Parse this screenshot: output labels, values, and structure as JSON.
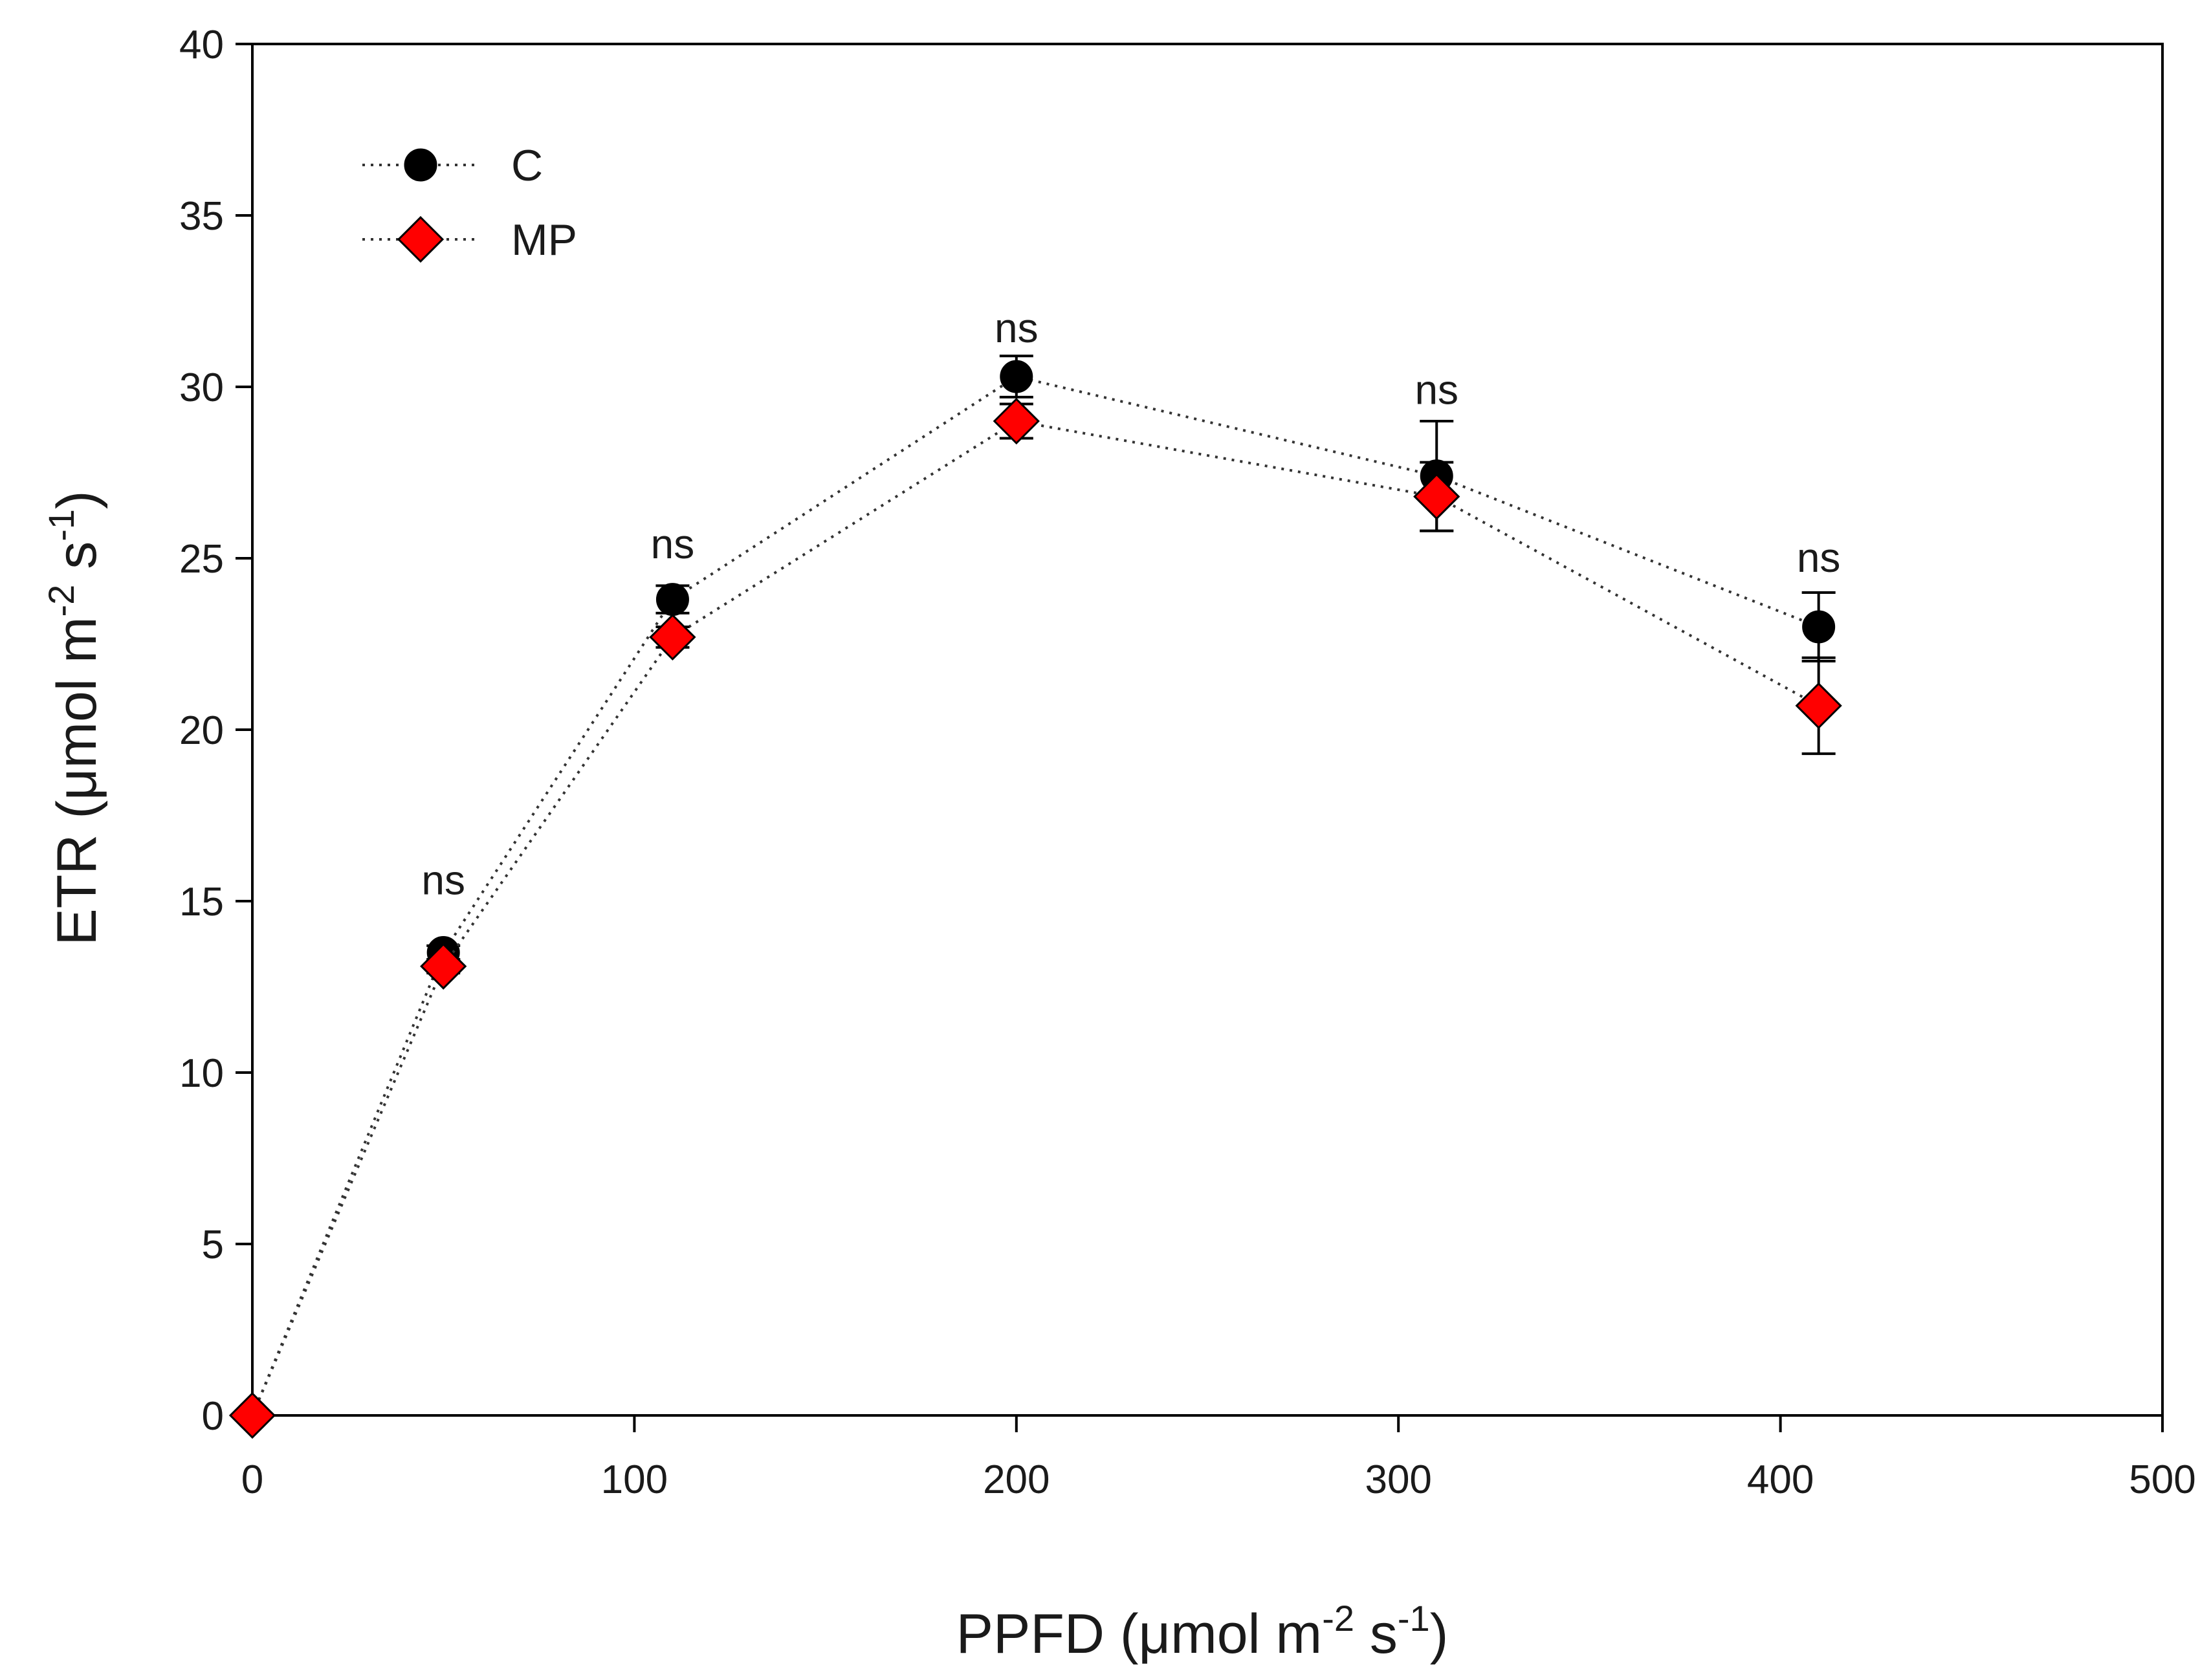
{
  "chart_data": {
    "type": "line",
    "title": "",
    "xlabel": {
      "main": "PPFD  (μmol m",
      "sup1": "-2",
      "mid": " s",
      "sup2": "-1",
      "end": ")"
    },
    "ylabel": {
      "main": "ETR (μmol m",
      "sup1": "-2",
      "mid": " s",
      "sup2": "-1",
      "end": ")"
    },
    "xlim": [
      0,
      500
    ],
    "ylim": [
      0,
      40
    ],
    "xticks": [
      0,
      100,
      200,
      300,
      400,
      500
    ],
    "yticks": [
      0,
      5,
      10,
      15,
      20,
      25,
      30,
      35,
      40
    ],
    "grid": false,
    "legend_position": "top-left",
    "series": [
      {
        "name": "C",
        "marker": "circle",
        "color": "#000000",
        "line": "dotted",
        "x": [
          0,
          50,
          110,
          200,
          310,
          410
        ],
        "y": [
          0,
          13.5,
          23.8,
          30.3,
          27.4,
          23.0
        ],
        "err": [
          0,
          0.2,
          0.4,
          0.6,
          1.6,
          1.0
        ]
      },
      {
        "name": "MP",
        "marker": "diamond",
        "color": "#ff0000",
        "line": "dotted",
        "x": [
          0,
          50,
          110,
          200,
          310,
          410
        ],
        "y": [
          0,
          13.1,
          22.7,
          29.0,
          26.8,
          20.7
        ],
        "err": [
          0,
          0.2,
          0.3,
          0.5,
          1.0,
          1.4
        ]
      }
    ],
    "annotations": [
      {
        "text": "ns",
        "x": 50,
        "y": 15.2
      },
      {
        "text": "ns",
        "x": 110,
        "y": 25.0
      },
      {
        "text": "ns",
        "x": 200,
        "y": 31.3
      },
      {
        "text": "ns",
        "x": 310,
        "y": 29.5
      },
      {
        "text": "ns",
        "x": 410,
        "y": 24.6
      }
    ]
  }
}
